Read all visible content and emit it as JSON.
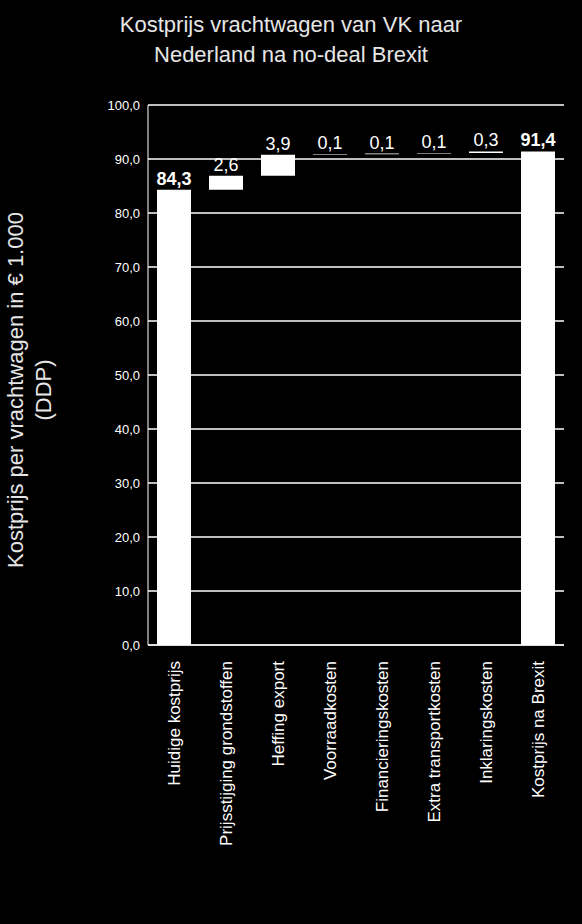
{
  "chart_data": {
    "type": "waterfall",
    "title": "Kostprijs vrachtwagen van VK naar Nederland na no-deal Brexit",
    "y_label": "Kostprijs per vrachtwagen in € 1.000 (DDP)",
    "categories": [
      "Huidige kostprijs",
      "Prijsstijging grondstoffen",
      "Heffing export",
      "Voorraadkosten",
      "Financieringskosten",
      "Extra transportkosten",
      "Inklaringskosten",
      "Kostprijs na Brexit"
    ],
    "values": [
      84.3,
      2.6,
      3.9,
      0.1,
      0.1,
      0.1,
      0.3,
      91.4
    ],
    "value_labels": [
      "84,3",
      "2,6",
      "3,9",
      "0,1",
      "0,1",
      "0,1",
      "0,3",
      "91,4"
    ],
    "data_labels": true,
    "color": "#ffffff",
    "ylim": [
      0,
      100
    ],
    "yticks": [
      {
        "value": 0,
        "label": "0,0"
      },
      {
        "value": 10,
        "label": "10,0"
      },
      {
        "value": 20,
        "label": "20,0"
      },
      {
        "value": 30,
        "label": "30,0"
      },
      {
        "value": 40,
        "label": "40,0"
      },
      {
        "value": 50,
        "label": "50,0"
      },
      {
        "value": 60,
        "label": "60,0"
      },
      {
        "value": 70,
        "label": "70,0"
      },
      {
        "value": 80,
        "label": "80,0"
      },
      {
        "value": 90,
        "label": "90,0"
      },
      {
        "value": 100,
        "label": "100,0"
      }
    ],
    "grid": true
  }
}
